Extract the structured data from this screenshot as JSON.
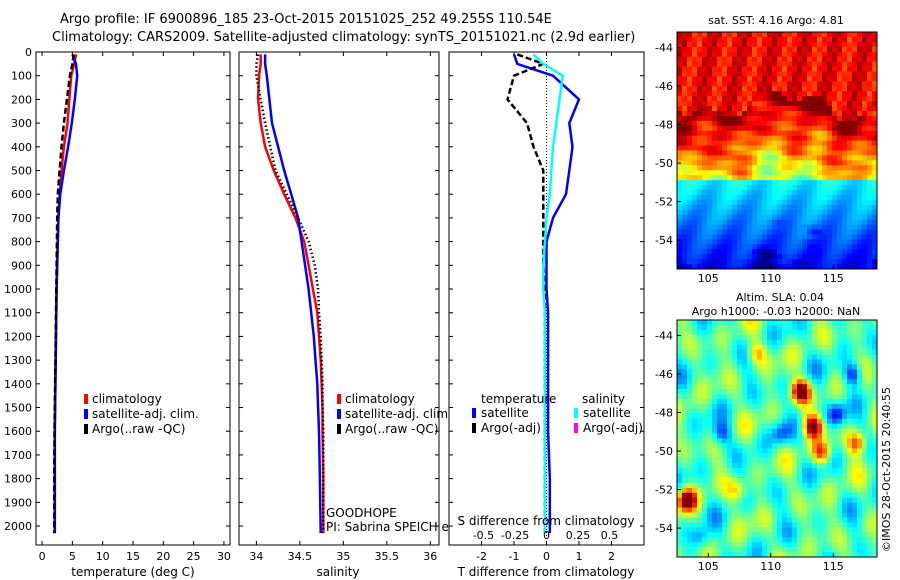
{
  "header": {
    "line1": "Argo profile: IF 6900896_185 23-Oct-2015 20151025_252 49.255S 110.54E",
    "line2": "Climatology: CARS2009. Satellite-adjusted climatology: synTS_20151021.nc (2.9d earlier)"
  },
  "colors": {
    "climatology": "#ff0000",
    "satellite": "#0000ff",
    "argo": "#000000",
    "salinity_satellite": "#00ffff",
    "salinity_argo": "#ff00ff"
  },
  "annotations": {
    "goodhope": "GOODHOPE",
    "pi": "PI: Sabrina SPEICH et Michel ARHAN",
    "imos": "©IMOS 28-Oct-2015 20:40:55"
  },
  "chart_data": [
    {
      "type": "line",
      "xlabel": "temperature (deg C)",
      "ylabel": "",
      "xlim": [
        -1,
        31
      ],
      "ylim": [
        2080,
        0
      ],
      "xticks": [
        0,
        5,
        10,
        15,
        20,
        25,
        30
      ],
      "yticks": [
        0,
        100,
        200,
        300,
        400,
        500,
        600,
        700,
        800,
        900,
        1000,
        1100,
        1200,
        1300,
        1400,
        1500,
        1600,
        1700,
        1800,
        1900,
        2000
      ],
      "legend": [
        "climatology",
        "satellite-adj. clim.",
        "Argo(..raw -QC)"
      ],
      "legend_position": "lower-middle",
      "series": [
        {
          "name": "climatology",
          "color": "#ff0000",
          "style": "solid",
          "x": [
            5.6,
            5.3,
            4.8,
            4.5,
            4.2,
            3.6,
            3.2,
            2.9,
            2.7,
            2.6,
            2.5,
            2.4,
            2.35,
            2.3,
            2.25,
            2.2,
            2.15,
            2.1,
            2.1,
            2.1
          ],
          "y": [
            10,
            50,
            100,
            200,
            300,
            400,
            500,
            600,
            700,
            800,
            900,
            1000,
            1100,
            1200,
            1300,
            1400,
            1500,
            1600,
            1800,
            2030
          ]
        },
        {
          "name": "satellite-adj. clim.",
          "color": "#0000ff",
          "style": "solid",
          "x": [
            5.0,
            5.6,
            5.8,
            5.4,
            4.9,
            4.3,
            3.6,
            3.0,
            2.7,
            2.6,
            2.5,
            2.4,
            2.35,
            2.3,
            2.25,
            2.2,
            2.15,
            2.1,
            2.1,
            2.1
          ],
          "y": [
            10,
            50,
            100,
            200,
            300,
            400,
            500,
            600,
            700,
            800,
            900,
            1000,
            1100,
            1200,
            1300,
            1400,
            1500,
            1600,
            1800,
            2030
          ]
        },
        {
          "name": "Argo(..raw -QC)",
          "color": "#000000",
          "style": "dashed",
          "x": [
            5.2,
            5.0,
            4.6,
            4.1,
            3.6,
            3.2,
            2.9,
            2.6,
            2.5,
            2.45,
            2.4,
            2.35,
            2.3,
            2.25,
            2.2,
            2.15,
            2.1,
            2.05,
            2.0,
            2.0
          ],
          "y": [
            10,
            50,
            100,
            200,
            300,
            400,
            500,
            600,
            700,
            800,
            900,
            1000,
            1100,
            1200,
            1300,
            1400,
            1500,
            1600,
            1800,
            2030
          ]
        }
      ]
    },
    {
      "type": "line",
      "xlabel": "salinity",
      "xlim": [
        33.8,
        36.1
      ],
      "ylim": [
        2080,
        0
      ],
      "xticks": [
        34,
        34.5,
        35,
        35.5,
        36
      ],
      "yticks": [
        0,
        100,
        200,
        300,
        400,
        500,
        600,
        700,
        800,
        900,
        1000,
        1100,
        1200,
        1300,
        1400,
        1500,
        1600,
        1700,
        1800,
        1900,
        2000
      ],
      "legend": [
        "climatology",
        "satellite-adj. clim.",
        "Argo(..raw -QC)"
      ],
      "legend_position": "lower-right",
      "series": [
        {
          "name": "climatology",
          "color": "#ff0000",
          "style": "solid",
          "x": [
            34.05,
            34.05,
            34.03,
            34.02,
            34.05,
            34.1,
            34.2,
            34.32,
            34.45,
            34.55,
            34.6,
            34.65,
            34.7,
            34.72,
            34.74,
            34.75,
            34.76,
            34.76,
            34.77,
            34.77
          ],
          "y": [
            10,
            50,
            100,
            200,
            300,
            400,
            500,
            600,
            700,
            800,
            900,
            1000,
            1100,
            1200,
            1300,
            1400,
            1500,
            1600,
            1800,
            2030
          ]
        },
        {
          "name": "satellite-adj. clim.",
          "color": "#0000ff",
          "style": "solid",
          "x": [
            34.1,
            34.1,
            34.12,
            34.15,
            34.18,
            34.25,
            34.32,
            34.4,
            34.48,
            34.52,
            34.56,
            34.6,
            34.63,
            34.66,
            34.68,
            34.7,
            34.71,
            34.72,
            34.73,
            34.74
          ],
          "y": [
            10,
            50,
            100,
            200,
            300,
            400,
            500,
            600,
            700,
            800,
            900,
            1000,
            1100,
            1200,
            1300,
            1400,
            1500,
            1600,
            1800,
            2030
          ]
        },
        {
          "name": "Argo(..raw -QC)",
          "color": "#000000",
          "style": "dotted",
          "x": [
            34.02,
            34.0,
            34.0,
            34.05,
            34.1,
            34.16,
            34.22,
            34.35,
            34.48,
            34.6,
            34.67,
            34.71,
            34.72,
            34.74,
            34.75,
            34.76,
            34.76,
            34.77,
            34.77,
            34.77
          ],
          "y": [
            10,
            50,
            100,
            200,
            300,
            400,
            500,
            600,
            700,
            800,
            900,
            1000,
            1100,
            1200,
            1300,
            1400,
            1500,
            1600,
            1800,
            2030
          ]
        }
      ]
    },
    {
      "type": "line",
      "xlabel": "T difference from climatology",
      "xlabel_top": "S difference from climatology",
      "xlim": [
        -3,
        3
      ],
      "ylim": [
        2080,
        0
      ],
      "xticks": [
        -2,
        -1,
        0,
        1,
        2
      ],
      "xticks_salinity": [
        -0.5,
        -0.25,
        0,
        0.25,
        0.5
      ],
      "yticks": [
        0,
        100,
        200,
        300,
        400,
        500,
        600,
        700,
        800,
        900,
        1000,
        1100,
        1200,
        1300,
        1400,
        1500,
        1600,
        1700,
        1800,
        1900,
        2000
      ],
      "legend_temperature_title": "temperature",
      "legend_salinity_title": "salinity",
      "legend_temperature": [
        "satellite",
        "Argo(-adj)"
      ],
      "legend_salinity": [
        "satellite",
        "Argo(-adj)"
      ],
      "legend_position": "lower-middle",
      "series": [
        {
          "name": "satellite",
          "group": "temperature",
          "color": "#0000ff",
          "style": "solid",
          "x": [
            -1.0,
            -0.9,
            0.2,
            1.0,
            0.7,
            0.8,
            0.7,
            0.6,
            0.2,
            0.0,
            0.0,
            0.0,
            0.05,
            0.05,
            0.05,
            0.05,
            0.05,
            0.05,
            0.1,
            0.1
          ],
          "y": [
            10,
            50,
            100,
            200,
            300,
            400,
            500,
            600,
            700,
            800,
            900,
            1000,
            1100,
            1200,
            1300,
            1400,
            1500,
            1600,
            1800,
            2030
          ]
        },
        {
          "name": "Argo(-adj)",
          "group": "temperature",
          "color": "#000000",
          "style": "dashed",
          "x": [
            -0.9,
            -0.1,
            -1.0,
            -1.2,
            -0.6,
            -0.4,
            -0.1,
            -0.1,
            -0.1,
            -0.1,
            -0.1,
            -0.05,
            -0.05,
            -0.05,
            -0.05,
            -0.05,
            -0.05,
            -0.05,
            -0.05,
            -0.05
          ],
          "y": [
            10,
            50,
            100,
            200,
            300,
            400,
            500,
            600,
            700,
            800,
            900,
            1000,
            1100,
            1200,
            1300,
            1400,
            1500,
            1600,
            1800,
            2030
          ]
        },
        {
          "name": "satellite",
          "group": "salinity",
          "color": "#00ffff",
          "style": "solid",
          "x": [
            -0.4,
            -0.1,
            0.5,
            0.4,
            0.3,
            0.2,
            0.15,
            0.1,
            0.0,
            -0.05,
            -0.1,
            -0.1,
            -0.05,
            -0.05,
            -0.05,
            -0.05,
            -0.05,
            -0.05,
            -0.05,
            -0.05
          ],
          "y": [
            10,
            50,
            100,
            200,
            300,
            400,
            500,
            600,
            700,
            800,
            900,
            1000,
            1100,
            1200,
            1300,
            1400,
            1500,
            1600,
            1800,
            2030
          ]
        }
      ]
    },
    {
      "type": "heatmap",
      "title": "sat. SST: 4.16 Argo: 4.81",
      "xlim": [
        102.5,
        118.5
      ],
      "ylim": [
        -55.5,
        -43.2
      ],
      "xticks": [
        105,
        110,
        115
      ],
      "yticks": [
        -44,
        -46,
        -48,
        -50,
        -52,
        -54
      ],
      "colormap": "jet",
      "field": "sst",
      "marker": {
        "x": 110.54,
        "y": -49.255
      }
    },
    {
      "type": "heatmap",
      "title": "Altim. SLA: 0.04",
      "subtitle": "Argo h1000: -0.03 h2000: NaN",
      "xlim": [
        102.5,
        118.5
      ],
      "ylim": [
        -55.5,
        -43.2
      ],
      "xticks": [
        105,
        110,
        115
      ],
      "yticks": [
        -44,
        -46,
        -48,
        -50,
        -52,
        -54
      ],
      "colormap": "jet",
      "field": "sla",
      "marker": {
        "x": 110.54,
        "y": -49.255
      }
    }
  ]
}
